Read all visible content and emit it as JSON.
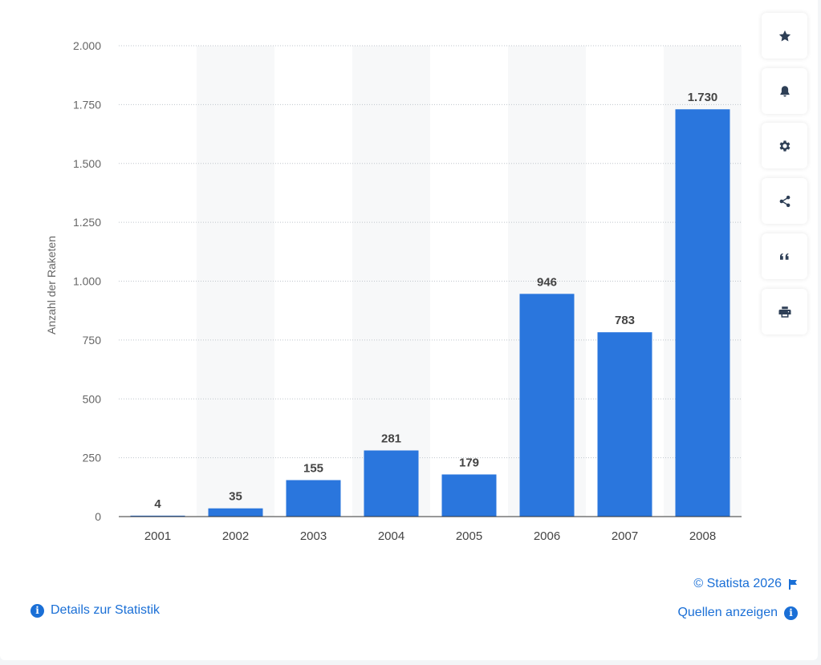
{
  "chart_data": {
    "type": "bar",
    "categories": [
      "2001",
      "2002",
      "2003",
      "2004",
      "2005",
      "2006",
      "2007",
      "2008"
    ],
    "values": [
      4,
      35,
      155,
      281,
      179,
      946,
      783,
      1730
    ],
    "value_labels": [
      "4",
      "35",
      "155",
      "281",
      "179",
      "946",
      "783",
      "1.730"
    ],
    "ylabel": "Anzahl der Raketen",
    "xlabel": "",
    "ylim": [
      0,
      2000
    ],
    "yticks": [
      0,
      250,
      500,
      750,
      1000,
      1250,
      1500,
      1750,
      2000
    ],
    "ytick_labels": [
      "0",
      "250",
      "500",
      "750",
      "1.000",
      "1.250",
      "1.500",
      "1.750",
      "2.000"
    ],
    "grid": true,
    "legend": "none",
    "bar_color": "#2a76dd"
  },
  "toolbar": {
    "icons": [
      "star-icon",
      "bell-icon",
      "gear-icon",
      "share-icon",
      "quote-icon",
      "print-icon"
    ]
  },
  "footer": {
    "copyright": "© Statista 2026",
    "sources": "Quellen anzeigen",
    "details": "Details zur Statistik"
  }
}
